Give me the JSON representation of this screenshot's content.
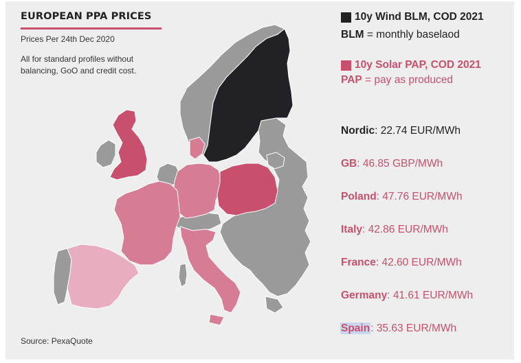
{
  "header": {
    "title": "EUROPEAN PPA PRICES",
    "subtitle": "Prices Per 24th Dec 2020",
    "note": "All for standard profiles without balancing, GoO and credit cost."
  },
  "source": "Source: PexaQuote",
  "legend": {
    "wind": {
      "label": "10y Wind BLM, COD 2021",
      "abbr": "BLM",
      "desc": " = monthly baselaod",
      "color": "#222226"
    },
    "solar": {
      "label": "10y Solar PAP, COD 2021",
      "abbr": "PAP",
      "desc": " = pay as produced",
      "color": "#c8506c"
    }
  },
  "prices": [
    {
      "region": "Nordic",
      "value": ": 22.74 EUR/MWh",
      "color": "#222222"
    },
    {
      "region": "GB",
      "value": ": 46.85 GBP/MWh",
      "color": "#c8506c"
    },
    {
      "region": "Poland",
      "value": ": 47.76 EUR/MWh",
      "color": "#c8506c"
    },
    {
      "region": "Italy",
      "value": ": 42.86 EUR/MWh",
      "color": "#c8506c"
    },
    {
      "region": "France",
      "value": ": 42.60 EUR/MWh",
      "color": "#c8506c"
    },
    {
      "region": "Germany",
      "value": ": 41.61 EUR/MWh",
      "color": "#c8506c"
    },
    {
      "region": "Spain",
      "value": ": 35.63 EUR/MWh",
      "color": "#c8506c"
    }
  ],
  "map_colors": {
    "nordic": "#222226",
    "gb": "#c8506c",
    "poland": "#c8506c",
    "italy": "#d77c95",
    "france": "#d77c95",
    "germany": "#d77c95",
    "spain": "#e8aec0",
    "other": "#9a9a9a",
    "border": "#ffffff"
  }
}
